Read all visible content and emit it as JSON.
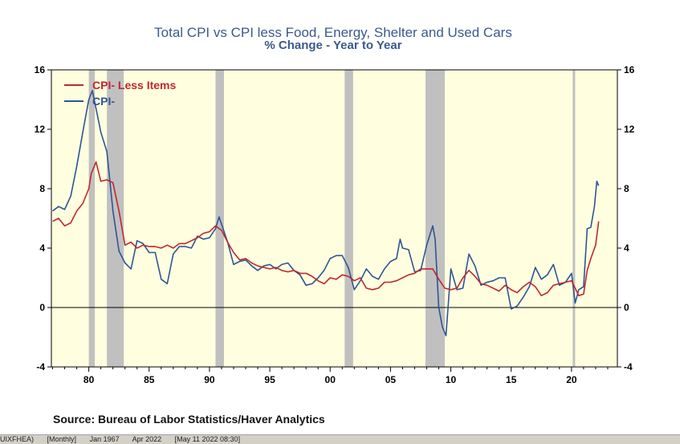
{
  "chart_data": {
    "type": "line",
    "title": "Total CPI vs CPI less Food, Energy, Shelter and Used Cars",
    "subtitle": "% Change - Year to Year",
    "source": "Source:  Bureau of Labor Statistics/Haver Analytics",
    "xlim": [
      1976.9,
      2023.8
    ],
    "ylim": [
      -4,
      16
    ],
    "yticks": [
      -4,
      0,
      4,
      8,
      12,
      16
    ],
    "xticks": [
      {
        "value": 1980,
        "label": "80"
      },
      {
        "value": 1985,
        "label": "85"
      },
      {
        "value": 1990,
        "label": "90"
      },
      {
        "value": 1995,
        "label": "95"
      },
      {
        "value": 2000,
        "label": "00"
      },
      {
        "value": 2005,
        "label": "05"
      },
      {
        "value": 2010,
        "label": "10"
      },
      {
        "value": 2015,
        "label": "15"
      },
      {
        "value": 2020,
        "label": "20"
      }
    ],
    "recessions": [
      [
        1980.0,
        1980.5
      ],
      [
        1981.5,
        1982.9
      ],
      [
        1990.5,
        1991.2
      ],
      [
        2001.2,
        2001.9
      ],
      [
        2007.9,
        2009.5
      ],
      [
        2020.1,
        2020.3
      ]
    ],
    "legend_position": "top-left",
    "plot_background": "#ffffe0",
    "recession_color": "#c0c0c0",
    "series": [
      {
        "name": "CPI- Less Items",
        "color": "#c0272d",
        "x": [
          1977.0,
          1977.5,
          1978.0,
          1978.5,
          1979.0,
          1979.5,
          1980.0,
          1980.2,
          1980.6,
          1981.0,
          1981.5,
          1982.0,
          1982.5,
          1983.0,
          1983.5,
          1984.0,
          1984.5,
          1985.0,
          1985.5,
          1986.0,
          1986.5,
          1987.0,
          1987.5,
          1988.0,
          1988.5,
          1989.0,
          1989.5,
          1990.0,
          1990.5,
          1991.0,
          1991.5,
          1992.0,
          1992.5,
          1993.0,
          1993.5,
          1994.0,
          1994.5,
          1995.0,
          1995.5,
          1996.0,
          1996.5,
          1997.0,
          1997.5,
          1998.0,
          1998.5,
          1999.0,
          1999.5,
          2000.0,
          2000.5,
          2001.0,
          2001.5,
          2002.0,
          2002.5,
          2003.0,
          2003.5,
          2004.0,
          2004.5,
          2005.0,
          2005.5,
          2006.0,
          2006.5,
          2007.0,
          2007.5,
          2008.0,
          2008.5,
          2009.0,
          2009.5,
          2010.0,
          2010.5,
          2011.0,
          2011.5,
          2012.0,
          2012.5,
          2013.0,
          2013.5,
          2014.0,
          2014.5,
          2015.0,
          2015.5,
          2016.0,
          2016.5,
          2017.0,
          2017.5,
          2018.0,
          2018.5,
          2019.0,
          2019.5,
          2020.0,
          2020.3,
          2020.6,
          2021.0,
          2021.3,
          2021.6,
          2022.0,
          2022.25
        ],
        "y": [
          5.8,
          6.0,
          5.5,
          5.7,
          6.5,
          7.0,
          8.0,
          9.0,
          9.8,
          8.5,
          8.6,
          8.4,
          6.5,
          4.2,
          4.4,
          4.0,
          4.2,
          4.1,
          4.1,
          4.0,
          4.2,
          4.0,
          4.3,
          4.3,
          4.5,
          4.7,
          5.0,
          5.1,
          5.5,
          5.2,
          4.4,
          3.7,
          3.2,
          3.3,
          3.0,
          2.8,
          2.7,
          2.6,
          2.7,
          2.5,
          2.4,
          2.5,
          2.3,
          2.3,
          2.1,
          1.8,
          1.6,
          2.0,
          1.9,
          2.2,
          2.1,
          1.8,
          2.0,
          1.3,
          1.2,
          1.3,
          1.7,
          1.7,
          1.8,
          2.0,
          2.2,
          2.3,
          2.6,
          2.6,
          2.6,
          1.9,
          1.3,
          1.2,
          1.3,
          2.0,
          2.5,
          2.1,
          1.6,
          1.5,
          1.3,
          1.1,
          1.5,
          1.2,
          1.0,
          1.4,
          1.7,
          1.4,
          0.8,
          1.0,
          1.5,
          1.6,
          1.7,
          1.8,
          1.3,
          0.8,
          0.9,
          2.5,
          3.3,
          4.2,
          5.8
        ]
      },
      {
        "name": "CPI-",
        "color": "#2e5593",
        "x": [
          1977.0,
          1977.5,
          1978.0,
          1978.5,
          1979.0,
          1979.5,
          1980.0,
          1980.3,
          1980.7,
          1981.0,
          1981.5,
          1982.0,
          1982.5,
          1983.0,
          1983.5,
          1984.0,
          1984.5,
          1985.0,
          1985.5,
          1986.0,
          1986.5,
          1987.0,
          1987.5,
          1988.0,
          1988.5,
          1989.0,
          1989.5,
          1990.0,
          1990.5,
          1990.8,
          1991.0,
          1991.5,
          1992.0,
          1992.5,
          1993.0,
          1993.5,
          1994.0,
          1994.5,
          1995.0,
          1995.5,
          1996.0,
          1996.5,
          1997.0,
          1997.5,
          1998.0,
          1998.5,
          1999.0,
          1999.5,
          2000.0,
          2000.5,
          2001.0,
          2001.5,
          2002.0,
          2002.5,
          2003.0,
          2003.5,
          2004.0,
          2004.5,
          2005.0,
          2005.5,
          2005.8,
          2006.0,
          2006.5,
          2007.0,
          2007.5,
          2008.0,
          2008.5,
          2008.7,
          2009.0,
          2009.3,
          2009.6,
          2010.0,
          2010.5,
          2011.0,
          2011.5,
          2012.0,
          2012.5,
          2013.0,
          2013.5,
          2014.0,
          2014.5,
          2015.0,
          2015.5,
          2016.0,
          2016.5,
          2017.0,
          2017.5,
          2018.0,
          2018.5,
          2019.0,
          2019.5,
          2020.0,
          2020.3,
          2020.6,
          2021.0,
          2021.3,
          2021.6,
          2021.9,
          2022.1,
          2022.25
        ],
        "y": [
          6.5,
          6.8,
          6.6,
          7.5,
          9.5,
          11.8,
          14.0,
          14.6,
          13.0,
          11.8,
          10.5,
          6.5,
          3.8,
          3.0,
          2.6,
          4.5,
          4.3,
          3.7,
          3.7,
          1.9,
          1.6,
          3.6,
          4.1,
          4.1,
          4.0,
          4.8,
          4.6,
          4.7,
          5.3,
          6.1,
          5.6,
          4.4,
          2.9,
          3.1,
          3.2,
          2.8,
          2.5,
          2.8,
          2.9,
          2.6,
          2.9,
          3.0,
          2.5,
          2.2,
          1.5,
          1.6,
          2.0,
          2.5,
          3.3,
          3.5,
          3.5,
          2.7,
          1.2,
          1.8,
          2.6,
          2.1,
          1.9,
          2.6,
          3.1,
          3.3,
          4.6,
          4.0,
          3.9,
          2.4,
          2.5,
          4.2,
          5.5,
          4.6,
          0.0,
          -1.3,
          -1.9,
          2.6,
          1.2,
          1.3,
          3.6,
          2.8,
          1.5,
          1.7,
          1.8,
          2.0,
          2.0,
          -0.1,
          0.1,
          0.7,
          1.4,
          2.7,
          1.9,
          2.2,
          2.9,
          1.5,
          1.7,
          2.3,
          0.3,
          1.2,
          1.4,
          5.3,
          5.4,
          6.8,
          8.5,
          8.2
        ]
      }
    ]
  },
  "footer": {
    "series_code": "UIXFHEA)",
    "frequency": "[Monthly]",
    "range_start": "Jan 1967",
    "range_end": "Apr 2022",
    "timestamp": "[May 11 2022 08:30]"
  }
}
